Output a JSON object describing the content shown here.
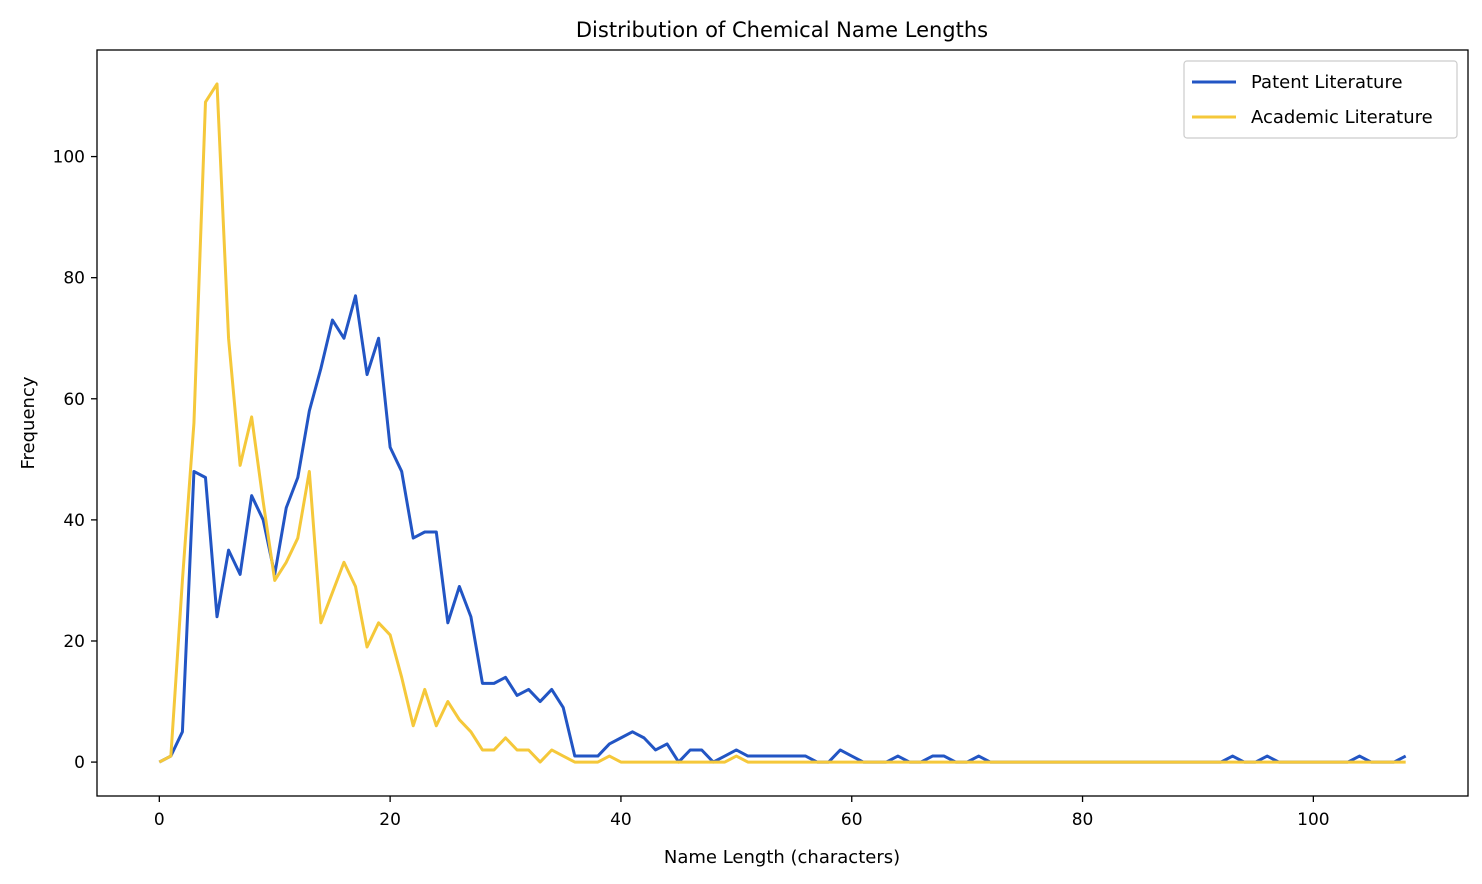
{
  "chart_data": {
    "type": "line",
    "title": "Distribution of Chemical Name Lengths",
    "xlabel": "Name Length (characters)",
    "ylabel": "Frequency",
    "xlim": [
      -5.4,
      113.4
    ],
    "ylim": [
      -5.6,
      117.6
    ],
    "xticks": [
      0,
      20,
      40,
      60,
      80,
      100
    ],
    "yticks": [
      0,
      20,
      40,
      60,
      80,
      100
    ],
    "grid": false,
    "legend_position": "top-right",
    "x": [
      0,
      1,
      2,
      3,
      4,
      5,
      6,
      7,
      8,
      9,
      10,
      11,
      12,
      13,
      14,
      15,
      16,
      17,
      18,
      19,
      20,
      21,
      22,
      23,
      24,
      25,
      26,
      27,
      28,
      29,
      30,
      31,
      32,
      33,
      34,
      35,
      36,
      37,
      38,
      39,
      40,
      41,
      42,
      43,
      44,
      45,
      46,
      47,
      48,
      49,
      50,
      51,
      52,
      53,
      54,
      55,
      56,
      57,
      58,
      59,
      60,
      61,
      62,
      63,
      64,
      65,
      66,
      67,
      68,
      69,
      70,
      71,
      72,
      73,
      74,
      75,
      76,
      77,
      78,
      79,
      80,
      81,
      82,
      83,
      84,
      85,
      86,
      87,
      88,
      89,
      90,
      91,
      92,
      93,
      94,
      95,
      96,
      97,
      98,
      99,
      100,
      101,
      102,
      103,
      104,
      105,
      106,
      107,
      108
    ],
    "series": [
      {
        "name": "Patent Literature",
        "color": "#2255c4",
        "values": [
          0,
          1,
          5,
          48,
          47,
          24,
          35,
          31,
          44,
          40,
          31,
          42,
          47,
          58,
          65,
          73,
          70,
          77,
          64,
          70,
          52,
          48,
          37,
          38,
          38,
          23,
          29,
          24,
          13,
          13,
          14,
          11,
          12,
          10,
          12,
          9,
          1,
          1,
          1,
          3,
          4,
          5,
          4,
          2,
          3,
          0,
          2,
          2,
          0,
          1,
          2,
          1,
          1,
          1,
          1,
          1,
          1,
          0,
          0,
          2,
          1,
          0,
          0,
          0,
          1,
          0,
          0,
          1,
          1,
          0,
          0,
          1,
          0,
          0,
          0,
          0,
          0,
          0,
          0,
          0,
          0,
          0,
          0,
          0,
          0,
          0,
          0,
          0,
          0,
          0,
          0,
          0,
          0,
          1,
          0,
          0,
          1,
          0,
          0,
          0,
          0,
          0,
          0,
          0,
          1,
          0,
          0,
          0,
          1
        ]
      },
      {
        "name": "Academic Literature",
        "color": "#f5c83a",
        "values": [
          0,
          1,
          30,
          56,
          109,
          112,
          70,
          49,
          57,
          43,
          30,
          33,
          37,
          48,
          23,
          28,
          33,
          29,
          19,
          23,
          21,
          14,
          6,
          12,
          6,
          10,
          7,
          5,
          2,
          2,
          4,
          2,
          2,
          0,
          2,
          1,
          0,
          0,
          0,
          1,
          0,
          0,
          0,
          0,
          0,
          0,
          0,
          0,
          0,
          0,
          1,
          0,
          0,
          0,
          0,
          0,
          0,
          0,
          0,
          0,
          0,
          0,
          0,
          0,
          0,
          0,
          0,
          0,
          0,
          0,
          0,
          0,
          0,
          0,
          0,
          0,
          0,
          0,
          0,
          0,
          0,
          0,
          0,
          0,
          0,
          0,
          0,
          0,
          0,
          0,
          0,
          0,
          0,
          0,
          0,
          0,
          0,
          0,
          0,
          0,
          0,
          0,
          0,
          0,
          0,
          0,
          0,
          0,
          0
        ]
      }
    ]
  }
}
